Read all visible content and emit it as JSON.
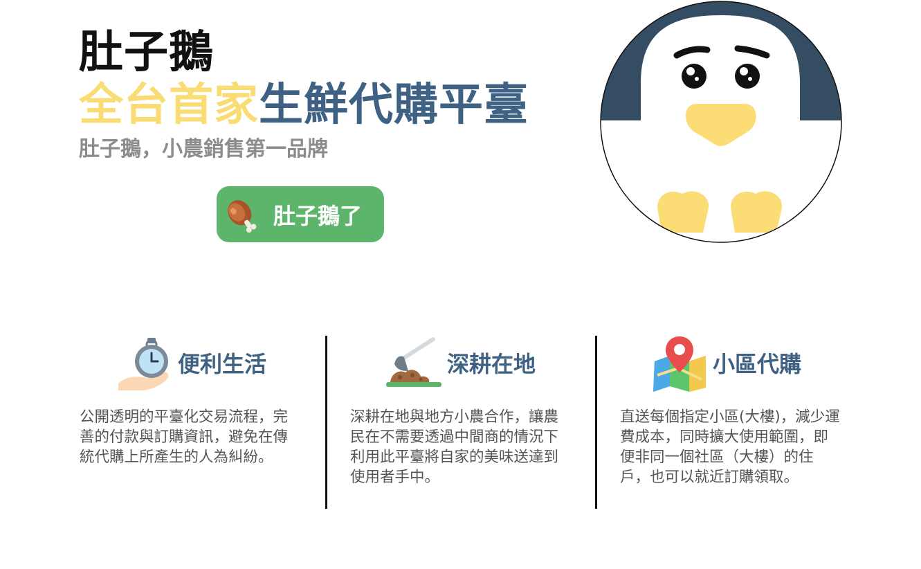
{
  "brand": {
    "title": "肚子鵝",
    "headline_highlight": "全台首家",
    "headline_rest": "生鮮代購平臺",
    "tagline": "肚子鵝，小農銷售第一品牌"
  },
  "cta": {
    "label": "肚子鵝了",
    "icon": "chicken-drumstick-icon"
  },
  "mascot": {
    "description_icon": "penguin-goose-mascot"
  },
  "features": [
    {
      "icon": "stopwatch-hand-icon",
      "title": "便利生活",
      "description": "公開透明的平臺化交易流程，完善的付款與訂購資訊，避免在傳統代購上所產生的人為糾紛。"
    },
    {
      "icon": "hoe-soil-icon",
      "title": "深耕在地",
      "description": "深耕在地與地方小農合作，讓農民在不需要透過中間商的情況下利用此平臺將自家的美味送達到使用者手中。"
    },
    {
      "icon": "map-pin-icon",
      "title": "小區代購",
      "description": "直送每個指定小區(大樓)，減少運費成本，同時擴大使用範圍，即便非同一個社區（大樓）的住戶，也可以就近訂購領取。"
    }
  ],
  "colors": {
    "highlight_yellow": "#f9dc73",
    "brand_blue": "#3f6284",
    "cta_green": "#5cb56b",
    "mascot_navy": "#354d62"
  }
}
